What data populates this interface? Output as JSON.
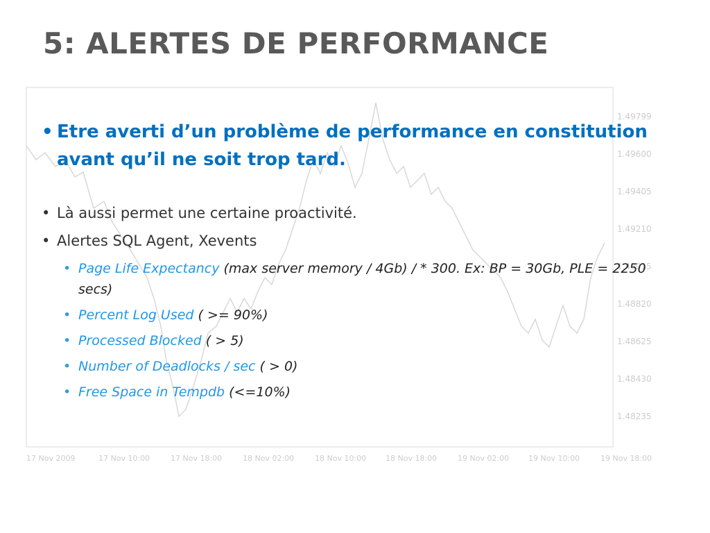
{
  "title": "5: ALERTES DE PERFORMANCE",
  "bullets": [
    {
      "text": "Etre averti d’un problème de performance en constitution avant qu’il ne soit trop tard."
    },
    {
      "text": "Là aussi permet une certaine proactivité."
    },
    {
      "text": "Alertes SQL Agent, Xevents"
    }
  ],
  "subbullets": [
    {
      "name": "Page Life Expectancy",
      "detail": " (max server memory / 4Gb) / * 300. Ex: BP = 30Gb, PLE = 2250 secs)"
    },
    {
      "name": "Percent Log Used",
      "detail": " ( >= 90%)"
    },
    {
      "name": "Processed Blocked",
      "detail": " ( > 5)"
    },
    {
      "name": "Number of Deadlocks / sec",
      "detail": " ( > 0)"
    },
    {
      "name": "Free Space in Tempdb",
      "detail": " (<=10%)"
    }
  ],
  "background_chart": {
    "y_ticks": [
      "1.49799",
      "1.49600",
      "1.49405",
      "1.49210",
      "1.49015",
      "1.48820",
      "1.48625",
      "1.48430",
      "1.48235"
    ],
    "x_ticks": [
      "17 Nov 2009",
      "17 Nov 10:00",
      "17 Nov 18:00",
      "18 Nov 02:00",
      "18 Nov 10:00",
      "18 Nov 18:00",
      "19 Nov 02:00",
      "19 Nov 10:00",
      "19 Nov 18:00"
    ]
  },
  "colors": {
    "title": "#595959",
    "accent": "#0070c0",
    "sub_accent": "#1e98e6"
  }
}
